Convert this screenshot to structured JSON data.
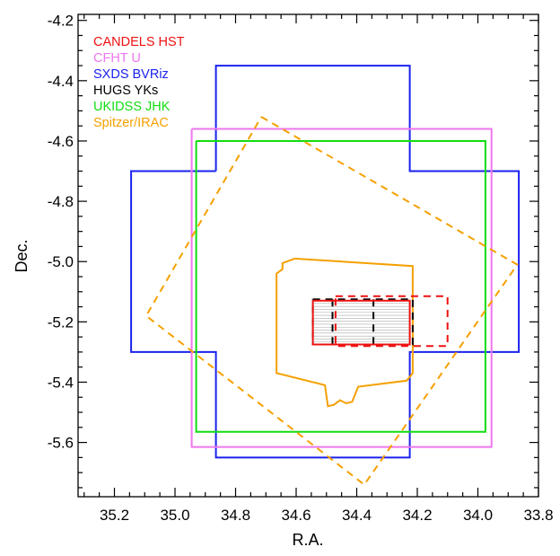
{
  "chart_data": {
    "type": "line",
    "xlabel": "R.A.",
    "ylabel": "Dec.",
    "xlim": [
      35.32,
      33.8
    ],
    "ylim": [
      -5.78,
      -4.18
    ],
    "x_ticks": [
      "35.2",
      "35.0",
      "34.8",
      "34.6",
      "34.4",
      "34.2",
      "34.0",
      "33.8"
    ],
    "x_tick_values": [
      35.2,
      35.0,
      34.8,
      34.6,
      34.4,
      34.2,
      34.0,
      33.8
    ],
    "y_ticks": [
      "-4.2",
      "-4.4",
      "-4.6",
      "-4.8",
      "-5.0",
      "-5.2",
      "-5.4",
      "-5.6"
    ],
    "y_tick_values": [
      -4.2,
      -4.4,
      -4.6,
      -4.8,
      -5.0,
      -5.2,
      -5.4,
      -5.6
    ],
    "legend_position": "top-left",
    "legend": [
      {
        "label": "CANDELS HST",
        "color": "#ee1111"
      },
      {
        "label": "CFHT U",
        "color": "#ee77ee"
      },
      {
        "label": "SXDS BVRiz",
        "color": "#1a22ee"
      },
      {
        "label": "HUGS YKs",
        "color": "#000000"
      },
      {
        "label": "UKIDSS JHK",
        "color": "#11dd11"
      },
      {
        "label": "Spitzer/IRAC",
        "color": "#f5a000"
      }
    ],
    "series": [
      {
        "name": "SXDS BVRiz",
        "color": "#1a22ee",
        "dash": false,
        "ra": [
          34.865,
          34.865,
          34.225,
          34.225,
          33.865,
          33.865,
          34.225,
          34.225,
          34.865,
          34.865,
          35.145,
          35.145,
          34.865
        ],
        "dec": [
          -4.7,
          -4.35,
          -4.35,
          -4.7,
          -4.7,
          -5.3,
          -5.3,
          -5.65,
          -5.65,
          -5.3,
          -5.3,
          -4.7,
          -4.7
        ]
      },
      {
        "name": "CFHT U",
        "color": "#ee77ee",
        "dash": false,
        "ra": [
          34.945,
          33.955,
          33.955,
          34.945,
          34.945
        ],
        "dec": [
          -4.56,
          -4.56,
          -5.615,
          -5.615,
          -4.56
        ]
      },
      {
        "name": "UKIDSS JHK",
        "color": "#11dd11",
        "dash": false,
        "ra": [
          34.93,
          33.975,
          33.975,
          34.93,
          34.93
        ],
        "dec": [
          -4.6,
          -4.6,
          -5.565,
          -5.565,
          -4.6
        ]
      },
      {
        "name": "Spitzer/IRAC",
        "color": "#f5a000",
        "dash": true,
        "ra": [
          34.715,
          33.87,
          34.375,
          35.095,
          34.715
        ],
        "dec": [
          -4.52,
          -5.01,
          -5.74,
          -5.18,
          -4.52
        ]
      },
      {
        "name": "Spitzer/IRAC",
        "color": "#f5a000",
        "dash": false,
        "ra": [
          34.605,
          34.215,
          34.215,
          34.235,
          34.395,
          34.415,
          34.435,
          34.455,
          34.475,
          34.495,
          34.505,
          34.665,
          34.665,
          34.645,
          34.645,
          34.605
        ],
        "dec": [
          -4.99,
          -5.015,
          -5.37,
          -5.395,
          -5.415,
          -5.465,
          -5.47,
          -5.46,
          -5.475,
          -5.48,
          -5.41,
          -5.37,
          -5.04,
          -5.025,
          -5.005,
          -4.99
        ]
      },
      {
        "name": "HUGS YKs",
        "color": "#000000",
        "dash": true,
        "ra": [
          34.545,
          34.215,
          34.215,
          34.545,
          34.545
        ],
        "dec": [
          -5.125,
          -5.125,
          -5.275,
          -5.275,
          -5.125
        ]
      },
      {
        "name": "HUGS YKs",
        "color": "#000000",
        "dash": true,
        "ra": [
          34.48,
          34.48
        ],
        "dec": [
          -5.125,
          -5.275
        ]
      },
      {
        "name": "HUGS YKs",
        "color": "#000000",
        "dash": true,
        "ra": [
          34.345,
          34.345
        ],
        "dec": [
          -5.125,
          -5.275
        ]
      },
      {
        "name": "CANDELS HST",
        "color": "#ee1111",
        "dash": false,
        "ra": [
          34.545,
          34.225,
          34.225,
          34.545,
          34.545
        ],
        "dec": [
          -5.13,
          -5.13,
          -5.275,
          -5.275,
          -5.13
        ]
      },
      {
        "name": "CANDELS HST",
        "color": "#ee1111",
        "dash": true,
        "ra": [
          34.47,
          34.1,
          34.1,
          34.47,
          34.47
        ],
        "dec": [
          -5.115,
          -5.115,
          -5.28,
          -5.28,
          -5.115
        ]
      }
    ]
  }
}
